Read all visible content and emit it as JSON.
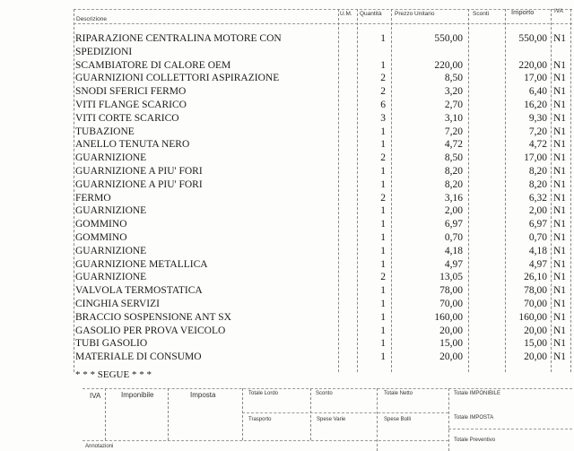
{
  "headers": {
    "description": "Descrizione",
    "um": "U.M.",
    "quantity": "Quantità",
    "unit_price": "Prezzo Unitario",
    "discounts": "Sconti",
    "amount": "Importo",
    "iva": "IVA"
  },
  "items": [
    {
      "description": "RIPARAZIONE CENTRALINA MOTORE CON",
      "qty": "1",
      "price": "550,00",
      "amount": "550,00",
      "iva": "N1"
    },
    {
      "description": "SPEDIZIONI",
      "qty": "",
      "price": "",
      "amount": "",
      "iva": ""
    },
    {
      "description": "SCAMBIATORE DI CALORE OEM",
      "qty": "1",
      "price": "220,00",
      "amount": "220,00",
      "iva": "N1"
    },
    {
      "description": "GUARNIZIONI COLLETTORI ASPIRAZIONE",
      "qty": "2",
      "price": "8,50",
      "amount": "17,00",
      "iva": "N1"
    },
    {
      "description": "SNODI SFERICI FERMO",
      "qty": "2",
      "price": "3,20",
      "amount": "6,40",
      "iva": "N1"
    },
    {
      "description": "VITI FLANGE SCARICO",
      "qty": "6",
      "price": "2,70",
      "amount": "16,20",
      "iva": "N1"
    },
    {
      "description": "VITI CORTE SCARICO",
      "qty": "3",
      "price": "3,10",
      "amount": "9,30",
      "iva": "N1"
    },
    {
      "description": "TUBAZIONE",
      "qty": "1",
      "price": "7,20",
      "amount": "7,20",
      "iva": "N1"
    },
    {
      "description": "ANELLO TENUTA NERO",
      "qty": "1",
      "price": "4,72",
      "amount": "4,72",
      "iva": "N1"
    },
    {
      "description": "GUARNIZIONE",
      "qty": "2",
      "price": "8,50",
      "amount": "17,00",
      "iva": "N1"
    },
    {
      "description": "GUARNIZIONE A PIU' FORI",
      "qty": "1",
      "price": "8,20",
      "amount": "8,20",
      "iva": "N1"
    },
    {
      "description": "GUARNIZIONE A PIU' FORI",
      "qty": "1",
      "price": "8,20",
      "amount": "8,20",
      "iva": "N1"
    },
    {
      "description": "FERMO",
      "qty": "2",
      "price": "3,16",
      "amount": "6,32",
      "iva": "N1"
    },
    {
      "description": "GUARNIZIONE",
      "qty": "1",
      "price": "2,00",
      "amount": "2,00",
      "iva": "N1"
    },
    {
      "description": "GOMMINO",
      "qty": "1",
      "price": "6,97",
      "amount": "6,97",
      "iva": "N1"
    },
    {
      "description": "GOMMINO",
      "qty": "1",
      "price": "0,70",
      "amount": "0,70",
      "iva": "N1"
    },
    {
      "description": "GUARNIZIONE",
      "qty": "1",
      "price": "4,18",
      "amount": "4,18",
      "iva": "N1"
    },
    {
      "description": "GUARNIZIONE METALLICA",
      "qty": "1",
      "price": "4,97",
      "amount": "4,97",
      "iva": "N1"
    },
    {
      "description": "GUARNIZIONE",
      "qty": "2",
      "price": "13,05",
      "amount": "26,10",
      "iva": "N1"
    },
    {
      "description": "VALVOLA TERMOSTATICA",
      "qty": "1",
      "price": "78,00",
      "amount": "78,00",
      "iva": "N1"
    },
    {
      "description": "CINGHIA SERVIZI",
      "qty": "1",
      "price": "70,00",
      "amount": "70,00",
      "iva": "N1"
    },
    {
      "description": "BRACCIO SOSPENSIONE ANT SX",
      "qty": "1",
      "price": "160,00",
      "amount": "160,00",
      "iva": "N1"
    },
    {
      "description": "GASOLIO PER PROVA VEICOLO",
      "qty": "1",
      "price": "20,00",
      "amount": "20,00",
      "iva": "N1"
    },
    {
      "description": "TUBI GASOLIO",
      "qty": "1",
      "price": "15,00",
      "amount": "15,00",
      "iva": "N1"
    },
    {
      "description": "MATERIALE DI CONSUMO",
      "qty": "1",
      "price": "20,00",
      "amount": "20,00",
      "iva": "N1"
    }
  ],
  "continues": "* * * SEGUE * * *",
  "footer": {
    "iva": "IVA",
    "imponibile": "Imponibile",
    "imposta": "Imposta",
    "totale_lordo": "Totale Lordo",
    "sconto": "Sconto",
    "totale_netto": "Totale Netto",
    "totale_imponibile": "Totale IMPONIBILE",
    "trasporto": "Trasporto",
    "spese_varie": "Spese Varie",
    "spese_bolli": "Spese Bolli",
    "totale_imposta": "Totale IMPOSTA",
    "totale_preventivo": "Totale Preventivo",
    "annotazioni": "Annotazioni"
  }
}
